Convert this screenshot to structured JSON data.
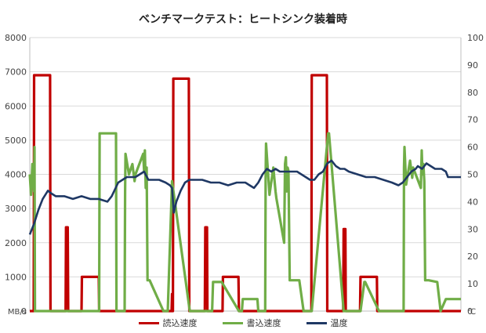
{
  "chart_data": {
    "type": "line",
    "title": "ベンチマークテスト：ヒートシンク装着時",
    "xlabel": "",
    "ylabel": "MB/s",
    "y2label": "℃",
    "ylim": [
      0,
      8000
    ],
    "y2lim": [
      0,
      100
    ],
    "yticks": [
      "0",
      "1000",
      "2000",
      "3000",
      "4000",
      "5000",
      "6000",
      "7000",
      "8000"
    ],
    "y2ticks": [
      "0",
      "10",
      "20",
      "30",
      "40",
      "50",
      "60",
      "70",
      "80",
      "90",
      "100"
    ],
    "xlim": [
      0,
      100
    ],
    "grid": true,
    "legend_position": "bottom",
    "series": [
      {
        "name": "読込速度",
        "color": "#c00000",
        "axis": "left",
        "x": [
          0,
          0.9,
          1.0,
          4.4,
          4.6,
          4.7,
          4.8,
          8.3,
          8.4,
          8.8,
          8.9,
          12.0,
          12.1,
          16.0,
          16.1,
          22.0,
          22.1,
          26.0,
          32.9,
          33.0,
          33.1,
          33.2,
          33.3,
          36.7,
          36.9,
          37.0,
          37.1,
          40.6,
          40.7,
          41.1,
          41.2,
          44.7,
          44.8,
          48.4,
          48.5,
          54.5,
          54.6,
          58.5,
          65.0,
          65.1,
          65.2,
          65.3,
          65.4,
          68.7,
          68.9,
          69.0,
          69.1,
          72.7,
          72.8,
          73.2,
          73.3,
          76.6,
          76.7,
          80.5,
          80.6,
          86.6,
          86.7,
          90.5,
          100
        ],
        "y": [
          0,
          0,
          6900,
          6900,
          6900,
          6900,
          0,
          0,
          2450,
          2450,
          0,
          0,
          1000,
          1000,
          0,
          0,
          0,
          0,
          0,
          500,
          0,
          0,
          6800,
          6800,
          6800,
          0,
          0,
          0,
          2450,
          2450,
          0,
          0,
          1000,
          1000,
          0,
          0,
          0,
          0,
          0,
          0,
          0,
          0,
          6900,
          6900,
          6900,
          0,
          0,
          0,
          2400,
          2400,
          0,
          0,
          1000,
          1000,
          0,
          0,
          0,
          0,
          0
        ]
      },
      {
        "name": "書込速度",
        "color": "#70ad47",
        "axis": "left",
        "x": [
          0,
          0.3,
          0.6,
          1.0,
          1.1,
          1.2,
          16.1,
          16.2,
          16.3,
          20.0,
          20.1,
          20.2,
          22.0,
          22.1,
          22.2,
          23.0,
          23.8,
          24.3,
          24.5,
          26.3,
          26.5,
          26.7,
          26.9,
          27.1,
          27.3,
          27.5,
          27.8,
          31.0,
          32.0,
          33.0,
          37.1,
          42.3,
          42.5,
          44.5,
          48.5,
          49.2,
          49.4,
          52.8,
          53.0,
          53.2,
          54.6,
          54.7,
          54.8,
          55.6,
          56.5,
          57.0,
          57.2,
          59.0,
          59.2,
          59.4,
          59.6,
          59.8,
          60.0,
          60.3,
          61.0,
          62.5,
          63.5,
          65.0,
          65.4,
          69.2,
          69.4,
          72.8,
          76.7,
          77.6,
          77.8,
          81.0,
          81.2,
          81.3,
          86.7,
          86.8,
          86.9,
          87.3,
          88.2,
          88.7,
          88.9,
          90.7,
          90.9,
          91.1,
          91.3,
          91.5,
          91.7,
          92.0,
          92.5,
          94.5,
          95.3,
          96.5,
          100
        ],
        "y": [
          4000,
          3400,
          4300,
          3500,
          4800,
          0,
          0,
          5200,
          5200,
          5200,
          0,
          0,
          0,
          3500,
          4600,
          4000,
          4300,
          3800,
          4000,
          4600,
          4100,
          4700,
          3600,
          4200,
          900,
          900,
          900,
          0,
          0,
          3800,
          0,
          0,
          850,
          850,
          0,
          0,
          350,
          350,
          0,
          0,
          0,
          4000,
          4900,
          3400,
          4200,
          3500,
          3300,
          2000,
          4300,
          4500,
          3500,
          4200,
          4100,
          900,
          900,
          900,
          0,
          0,
          0,
          5200,
          5200,
          0,
          0,
          850,
          850,
          0,
          0,
          0,
          0,
          4200,
          4800,
          3700,
          4400,
          3900,
          4200,
          3600,
          4700,
          4000,
          4300,
          3800,
          900,
          900,
          900,
          850,
          0,
          350,
          350
        ]
      },
      {
        "name": "温度",
        "color": "#1f3864",
        "axis": "right",
        "x": [
          0,
          1.0,
          2.0,
          3.0,
          4.2,
          5.0,
          6.0,
          8.0,
          10.0,
          12.0,
          14.0,
          16.0,
          18.0,
          19.0,
          20.5,
          21.5,
          22.5,
          23.5,
          24.5,
          25.5,
          26.5,
          27.5,
          28.5,
          30.0,
          31.5,
          32.5,
          33.0,
          33.4,
          34.0,
          35.0,
          36.0,
          37.0,
          37.5,
          38.5,
          40.0,
          42.0,
          44.0,
          46.0,
          48.0,
          50.0,
          51.0,
          52.0,
          53.0,
          54.0,
          55.0,
          56.0,
          57.0,
          58.0,
          60.0,
          62.0,
          64.0,
          65.0,
          66.0,
          67.0,
          68.0,
          69.0,
          70.0,
          71.0,
          72.0,
          73.0,
          74.0,
          76.0,
          78.0,
          80.0,
          82.0,
          84.0,
          85.5,
          86.5,
          87.5,
          88.5,
          89.5,
          90.0,
          91.0,
          92.0,
          94.0,
          95.5,
          96.5,
          97.0,
          100
        ],
        "y": [
          28,
          32,
          37,
          41,
          44,
          43,
          42,
          42,
          41,
          42,
          41,
          41,
          40,
          42,
          47,
          48,
          49,
          49,
          49,
          50,
          51,
          48,
          48,
          48,
          47,
          46,
          45,
          36,
          40,
          44,
          47,
          48,
          48,
          48,
          48,
          47,
          47,
          46,
          47,
          47,
          46,
          45,
          47,
          50,
          52,
          51,
          52,
          51,
          51,
          51,
          49,
          48,
          48,
          50,
          51,
          54,
          55,
          53,
          52,
          52,
          51,
          50,
          49,
          49,
          48,
          47,
          46,
          47,
          49,
          51,
          52,
          53,
          52,
          54,
          52,
          52,
          51,
          49,
          49
        ]
      }
    ]
  }
}
